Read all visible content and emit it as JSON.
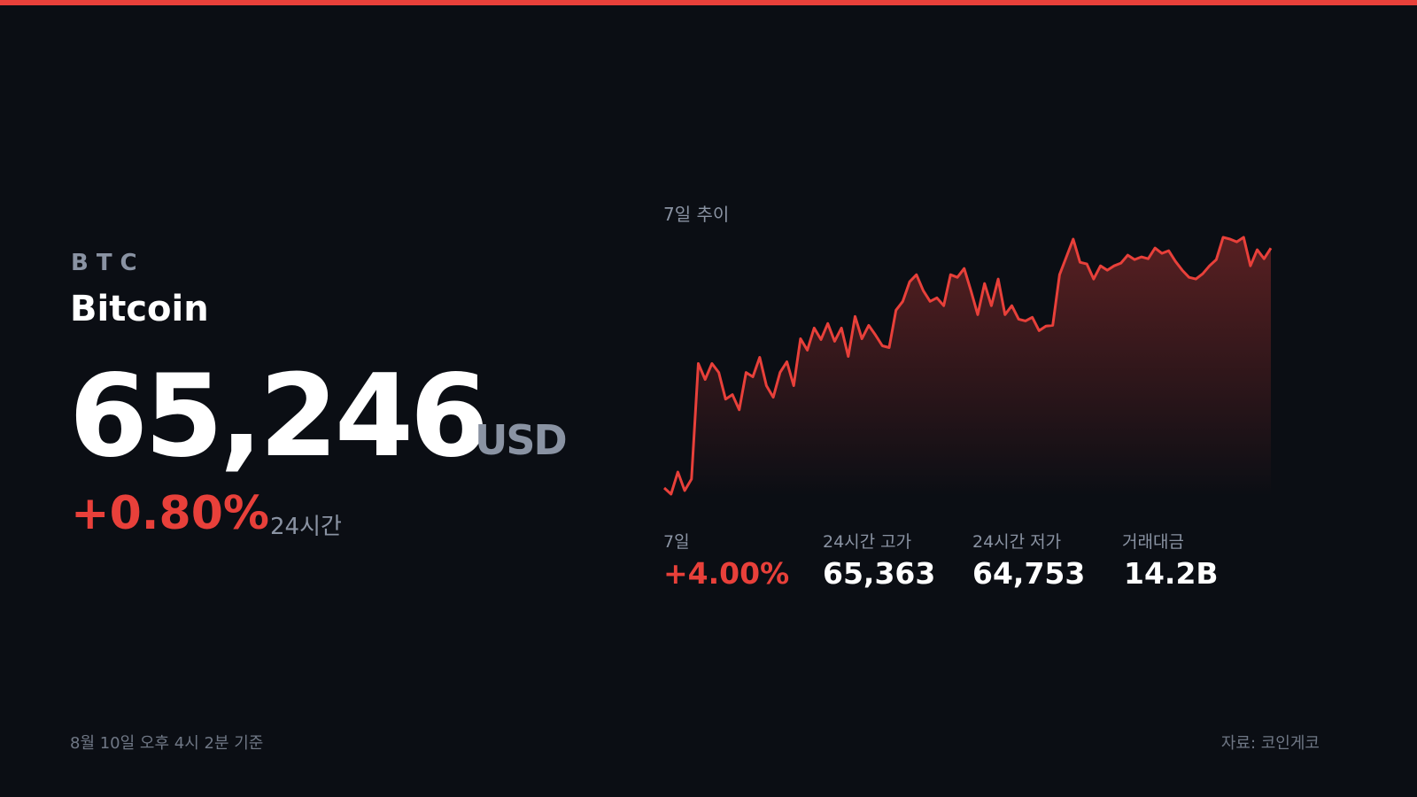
{
  "header": {
    "ticker": "BTC",
    "name": "Bitcoin",
    "price": "65,246",
    "currency": "USD",
    "change": "+0.80%",
    "change_period": "24시간"
  },
  "chart_data": {
    "type": "line",
    "title": "7일 추이",
    "color": "#e8403a",
    "values": [
      62736,
      62671,
      62903,
      62708,
      62829,
      64038,
      63871,
      64038,
      63945,
      63666,
      63713,
      63554,
      63945,
      63899,
      64103,
      63806,
      63685,
      63945,
      64057,
      63806,
      64298,
      64178,
      64410,
      64289,
      64457,
      64271,
      64410,
      64112,
      64531,
      64298,
      64438,
      64336,
      64224,
      64205,
      64596,
      64689,
      64894,
      64968,
      64801,
      64689,
      64726,
      64643,
      64968,
      64940,
      65033,
      64801,
      64550,
      64875,
      64643,
      64922,
      64550,
      64643,
      64503,
      64484,
      64522,
      64382,
      64429,
      64438,
      64968,
      65154,
      65340,
      65098,
      65080,
      64922,
      65061,
      65015,
      65061,
      65089,
      65173,
      65126,
      65154,
      65135,
      65247,
      65191,
      65219,
      65108,
      65015,
      64940,
      64922,
      64977,
      65061,
      65126,
      65359,
      65340,
      65312,
      65359,
      65061,
      65229,
      65135,
      65246
    ]
  },
  "stats": [
    {
      "label": "7일",
      "value": "+4.00%"
    },
    {
      "label": "24시간 고가",
      "value": "65,363"
    },
    {
      "label": "24시간 저가",
      "value": "64,753"
    },
    {
      "label": "거래대금",
      "value": "14.2B"
    }
  ],
  "footer": {
    "timestamp": "8월 10일 오후 4시 2분 기준",
    "source": "자료: 코인게코"
  }
}
